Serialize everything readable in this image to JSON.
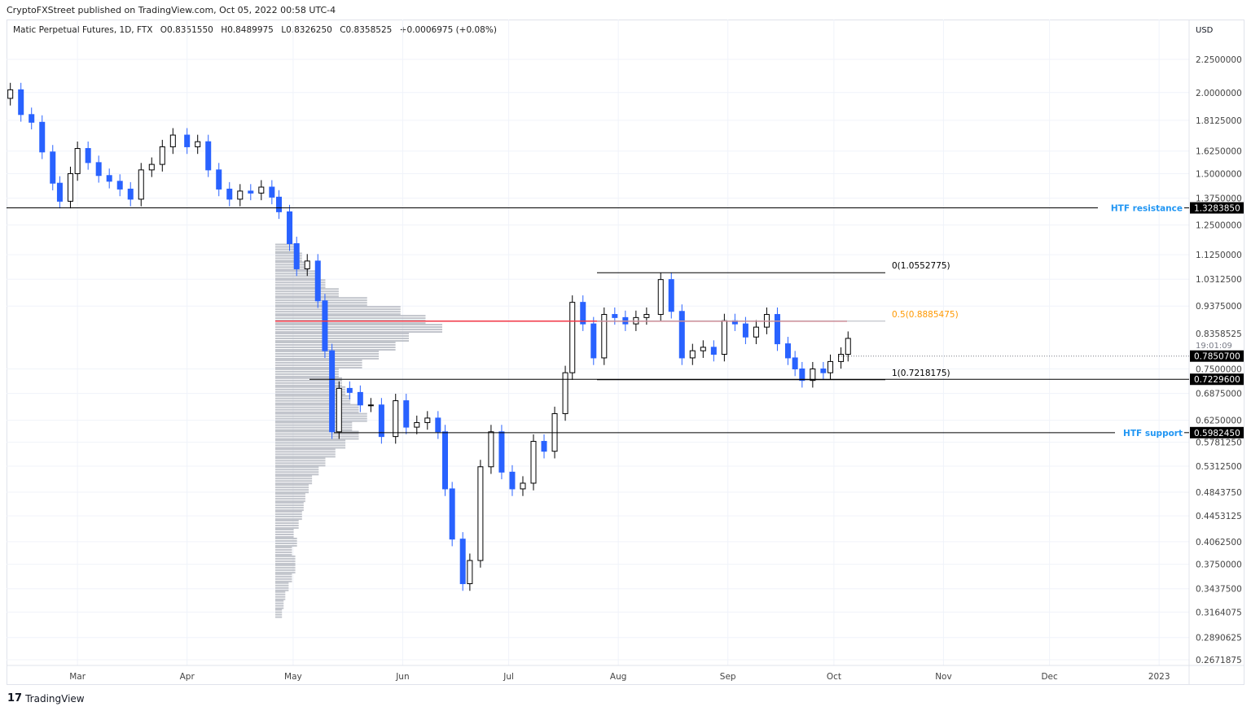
{
  "header": {
    "published": "CryptoFXStreet published on TradingView.com, Oct 05, 2022 00:58 UTC-4",
    "symbol": "Matic Perpetual Futures, 1D, FTX",
    "open": "O0.8351550",
    "high": "H0.8489975",
    "low": "L0.8326250",
    "close": "C0.8358525",
    "change": "+0.0006975 (+0.08%)"
  },
  "footer": {
    "brand": "TradingView",
    "logo_icon": "tradingview-logo-icon"
  },
  "colors": {
    "up_body": "#ffffff",
    "up_border": "#000000",
    "down": "#2962ff",
    "red_line": "#f23645",
    "label_blue": "#2196f3",
    "fib_half": "#ff9800",
    "volume_profile": "#b2b5be"
  },
  "chart_data": {
    "type": "candlestick",
    "title": "",
    "currency": "USD",
    "y_scale": "log",
    "ylim": [
      0.2571875,
      2.4
    ],
    "xlim": [
      "2022-02-08",
      "2023-01-08"
    ],
    "grid": true,
    "y_ticks": [
      "2.2500000",
      "2.0000000",
      "1.8125000",
      "1.6250000",
      "1.5000000",
      "1.3750000",
      "1.2500000",
      "1.1250000",
      "1.0312500",
      "0.9375000",
      "0.7500000",
      "0.6875000",
      "0.6250000",
      "0.5781250",
      "0.5312500",
      "0.4843750",
      "0.4453125",
      "0.4062500",
      "0.3750000",
      "0.3437500",
      "0.3164075",
      "0.2890625",
      "0.2671875"
    ],
    "x_ticks": [
      {
        "label": "Mar",
        "date": "2022-03-01"
      },
      {
        "label": "Apr",
        "date": "2022-04-01"
      },
      {
        "label": "May",
        "date": "2022-05-01"
      },
      {
        "label": "Jun",
        "date": "2022-06-01"
      },
      {
        "label": "Jul",
        "date": "2022-07-01"
      },
      {
        "label": "Aug",
        "date": "2022-08-01"
      },
      {
        "label": "Sep",
        "date": "2022-09-01"
      },
      {
        "label": "Oct",
        "date": "2022-10-01"
      },
      {
        "label": "Nov",
        "date": "2022-11-01"
      },
      {
        "label": "Dec",
        "date": "2022-12-01"
      },
      {
        "label": "2023",
        "date": "2023-01-01"
      }
    ],
    "closes": [
      [
        "2022-02-10",
        2.02
      ],
      [
        "2022-02-13",
        1.85
      ],
      [
        "2022-02-16",
        1.8
      ],
      [
        "2022-02-19",
        1.62
      ],
      [
        "2022-02-22",
        1.45
      ],
      [
        "2022-02-24",
        1.36
      ],
      [
        "2022-02-27",
        1.5
      ],
      [
        "2022-03-01",
        1.64
      ],
      [
        "2022-03-04",
        1.56
      ],
      [
        "2022-03-07",
        1.49
      ],
      [
        "2022-03-10",
        1.46
      ],
      [
        "2022-03-13",
        1.42
      ],
      [
        "2022-03-16",
        1.37
      ],
      [
        "2022-03-19",
        1.52
      ],
      [
        "2022-03-22",
        1.55
      ],
      [
        "2022-03-25",
        1.65
      ],
      [
        "2022-03-28",
        1.72
      ],
      [
        "2022-04-01",
        1.65
      ],
      [
        "2022-04-04",
        1.68
      ],
      [
        "2022-04-07",
        1.52
      ],
      [
        "2022-04-10",
        1.42
      ],
      [
        "2022-04-13",
        1.37
      ],
      [
        "2022-04-16",
        1.41
      ],
      [
        "2022-04-19",
        1.4
      ],
      [
        "2022-04-22",
        1.43
      ],
      [
        "2022-04-25",
        1.38
      ],
      [
        "2022-04-27",
        1.31
      ],
      [
        "2022-04-30",
        1.17
      ],
      [
        "2022-05-02",
        1.07
      ],
      [
        "2022-05-05",
        1.1
      ],
      [
        "2022-05-08",
        0.955
      ],
      [
        "2022-05-10",
        0.8
      ],
      [
        "2022-05-12",
        0.6
      ],
      [
        "2022-05-14",
        0.7
      ],
      [
        "2022-05-17",
        0.69
      ],
      [
        "2022-05-20",
        0.66
      ],
      [
        "2022-05-23",
        0.66
      ],
      [
        "2022-05-26",
        0.59
      ],
      [
        "2022-05-30",
        0.67
      ],
      [
        "2022-06-02",
        0.61
      ],
      [
        "2022-06-05",
        0.62
      ],
      [
        "2022-06-08",
        0.63
      ],
      [
        "2022-06-11",
        0.6
      ],
      [
        "2022-06-13",
        0.49
      ],
      [
        "2022-06-15",
        0.41
      ],
      [
        "2022-06-18",
        0.35
      ],
      [
        "2022-06-20",
        0.38
      ],
      [
        "2022-06-23",
        0.53
      ],
      [
        "2022-06-26",
        0.6
      ],
      [
        "2022-06-29",
        0.52
      ],
      [
        "2022-07-02",
        0.49
      ],
      [
        "2022-07-05",
        0.5
      ],
      [
        "2022-07-08",
        0.58
      ],
      [
        "2022-07-11",
        0.56
      ],
      [
        "2022-07-14",
        0.64
      ],
      [
        "2022-07-17",
        0.74
      ],
      [
        "2022-07-19",
        0.95
      ],
      [
        "2022-07-22",
        0.88
      ],
      [
        "2022-07-25",
        0.78
      ],
      [
        "2022-07-28",
        0.91
      ],
      [
        "2022-07-31",
        0.9
      ],
      [
        "2022-08-03",
        0.88
      ],
      [
        "2022-08-06",
        0.9
      ],
      [
        "2022-08-09",
        0.91
      ],
      [
        "2022-08-13",
        1.03
      ],
      [
        "2022-08-16",
        0.92
      ],
      [
        "2022-08-19",
        0.78
      ],
      [
        "2022-08-22",
        0.8
      ],
      [
        "2022-08-25",
        0.81
      ],
      [
        "2022-08-28",
        0.79
      ],
      [
        "2022-08-31",
        0.89
      ],
      [
        "2022-09-03",
        0.88
      ],
      [
        "2022-09-06",
        0.84
      ],
      [
        "2022-09-09",
        0.87
      ],
      [
        "2022-09-12",
        0.91
      ],
      [
        "2022-09-15",
        0.82
      ],
      [
        "2022-09-18",
        0.78
      ],
      [
        "2022-09-20",
        0.75
      ],
      [
        "2022-09-22",
        0.72
      ],
      [
        "2022-09-25",
        0.75
      ],
      [
        "2022-09-28",
        0.74
      ],
      [
        "2022-09-30",
        0.77
      ],
      [
        "2022-10-03",
        0.79
      ],
      [
        "2022-10-05",
        0.8358525
      ]
    ],
    "volume_profile": {
      "price_range": [
        0.31,
        1.17
      ],
      "relative_volume": [
        0.04,
        0.05,
        0.06,
        0.08,
        0.1,
        0.12,
        0.12,
        0.1,
        0.13,
        0.11,
        0.14,
        0.16,
        0.17,
        0.18,
        0.2,
        0.22,
        0.26,
        0.3,
        0.36,
        0.42,
        0.5,
        0.46,
        0.55,
        0.5,
        0.45,
        0.42,
        0.4,
        0.38,
        0.52,
        0.62,
        0.72,
        0.8,
        1.0,
        0.9,
        0.75,
        0.55,
        0.38,
        0.3,
        0.25,
        0.2,
        0.16,
        0.12
      ]
    },
    "lines": [
      {
        "name": "HTF resistance",
        "price": 1.328385,
        "label": "1.3283850",
        "color": "#000000"
      },
      {
        "name": "HTF support",
        "price": 0.598245,
        "label": "0.5982450",
        "color": "#000000"
      },
      {
        "name": "",
        "price": 0.72296,
        "label": "0.7229600",
        "color": "#000000"
      },
      {
        "name": "",
        "price": 0.78507,
        "label": "0.7850700",
        "color": "#787b86",
        "style": "dotted"
      },
      {
        "name": "",
        "price": 0.8885475,
        "label": "",
        "color": "#f23645"
      }
    ],
    "fib": [
      {
        "label": "0(1.0552775)",
        "price": 1.0552775,
        "color": "#000000"
      },
      {
        "label": "0.5(0.8885475)",
        "price": 0.8885475,
        "color": "#ff9800"
      },
      {
        "label": "1(0.7218175)",
        "price": 0.7218175,
        "color": "#000000"
      }
    ],
    "last_price": {
      "label": "0.8358525",
      "countdown": "19:01:09"
    }
  }
}
